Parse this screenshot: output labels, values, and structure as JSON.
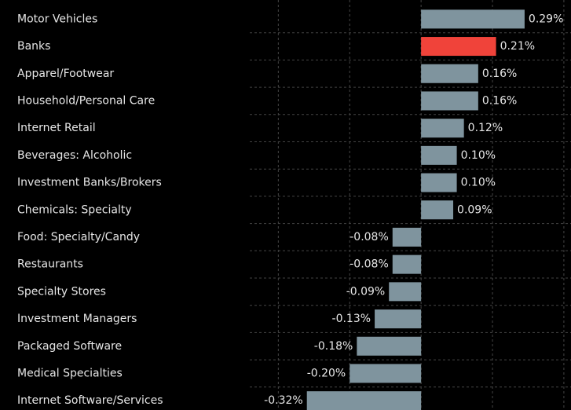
{
  "chart_data": {
    "type": "hbar",
    "categories": [
      "Motor Vehicles",
      "Banks",
      "Apparel/Footwear",
      "Household/Personal Care",
      "Internet Retail",
      "Beverages: Alcoholic",
      "Investment Banks/Brokers",
      "Chemicals: Specialty",
      "Food: Specialty/Candy",
      "Restaurants",
      "Specialty Stores",
      "Investment Managers",
      "Packaged Software",
      "Medical Specialties",
      "Internet Software/Services"
    ],
    "values": [
      0.29,
      0.21,
      0.16,
      0.16,
      0.12,
      0.1,
      0.1,
      0.09,
      -0.08,
      -0.08,
      -0.09,
      -0.13,
      -0.18,
      -0.2,
      -0.32
    ],
    "value_labels": [
      "0.29%",
      "0.21%",
      "0.16%",
      "0.16%",
      "0.12%",
      "0.10%",
      "0.10%",
      "0.09%",
      "-0.08%",
      "-0.08%",
      "-0.09%",
      "-0.13%",
      "-0.18%",
      "-0.20%",
      "-0.32%"
    ],
    "colors": [
      "#7f949e",
      "#f0433a",
      "#7f949e",
      "#7f949e",
      "#7f949e",
      "#7f949e",
      "#7f949e",
      "#7f949e",
      "#7f949e",
      "#7f949e",
      "#7f949e",
      "#7f949e",
      "#7f949e",
      "#7f949e",
      "#7f949e"
    ],
    "xlim": [
      -0.48,
      0.42
    ],
    "xticks": [
      -0.4,
      -0.2,
      0,
      0.2,
      0.4
    ],
    "grid": true
  }
}
